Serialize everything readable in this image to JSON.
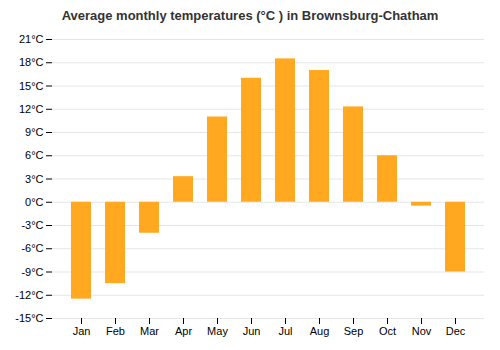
{
  "chart_data": {
    "type": "bar",
    "title": "Average monthly temperatures (°C ) in Brownsburg-Chatham",
    "categories": [
      "Jan",
      "Feb",
      "Mar",
      "Apr",
      "May",
      "Jun",
      "Jul",
      "Aug",
      "Sep",
      "Oct",
      "Nov",
      "Dec"
    ],
    "values": [
      -12.5,
      -10.5,
      -4.0,
      3.3,
      11.0,
      16.0,
      18.5,
      17.0,
      12.3,
      6.0,
      -0.5,
      -9.0
    ],
    "color": "#FFA820",
    "ylim": [
      -15,
      21
    ],
    "yticks": [
      {
        "value": -15,
        "label": "-15°C"
      },
      {
        "value": -12,
        "label": "-12°C"
      },
      {
        "value": -9,
        "label": "-9°C"
      },
      {
        "value": -6,
        "label": "-6°C"
      },
      {
        "value": -3,
        "label": "-3°C"
      },
      {
        "value": 0,
        "label": "0°C"
      },
      {
        "value": 3,
        "label": "3°C"
      },
      {
        "value": 6,
        "label": "6°C"
      },
      {
        "value": 9,
        "label": "9°C"
      },
      {
        "value": 12,
        "label": "12°C"
      },
      {
        "value": 15,
        "label": "15°C"
      },
      {
        "value": 18,
        "label": "18°C"
      },
      {
        "value": 21,
        "label": "21°C"
      }
    ],
    "grid": true
  }
}
